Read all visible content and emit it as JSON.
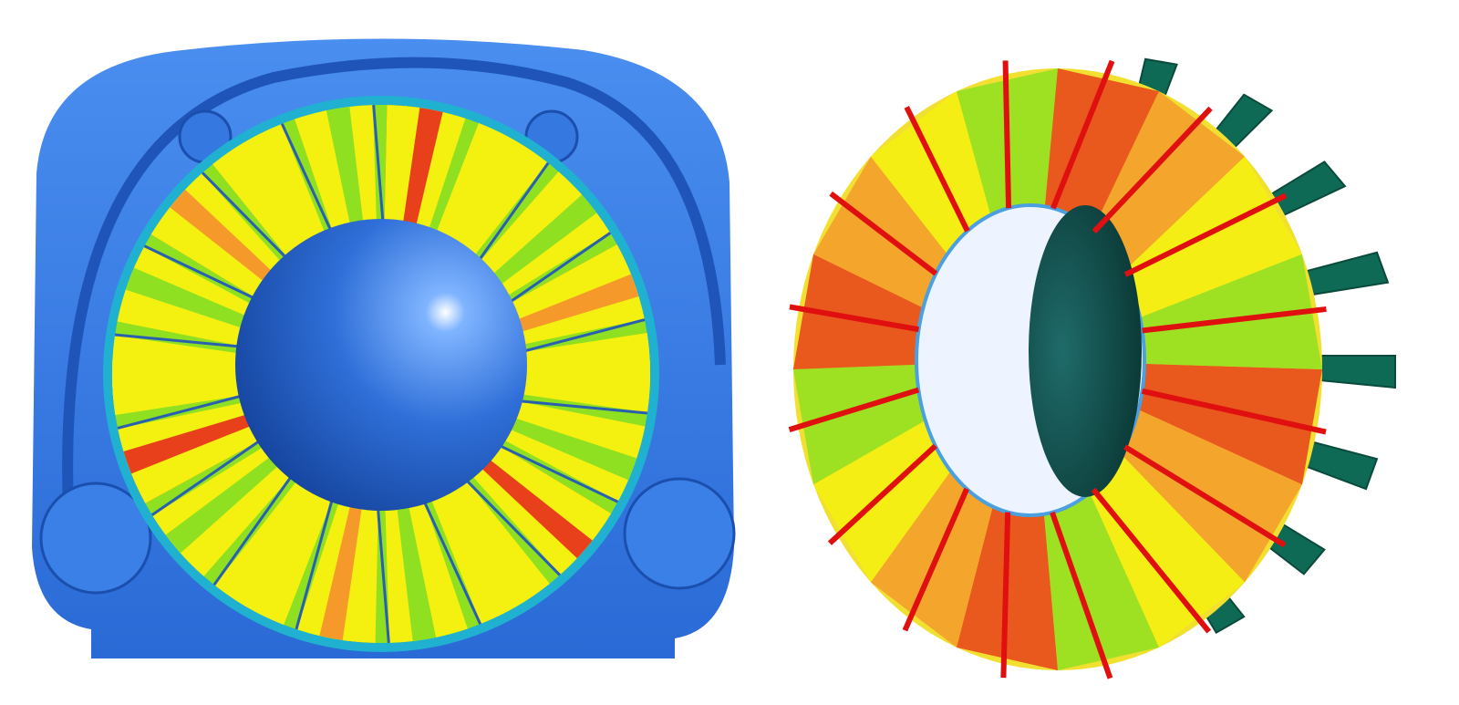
{
  "colors": {
    "housing": "#3a7fe0",
    "housing_dark": "#1f55b8",
    "contour_high": "#e8401a",
    "contour_mid_high": "#f59a2a",
    "contour_mid": "#f4f010",
    "contour_low": "#8fe020",
    "contour_lowest": "#20c0d0",
    "blade_red": "#e01010",
    "blade_green": "#0f6a55"
  },
  "left_view": {
    "blade_count": 18
  },
  "right_view": {
    "blade_count": 16,
    "rear_blade_count": 9
  }
}
